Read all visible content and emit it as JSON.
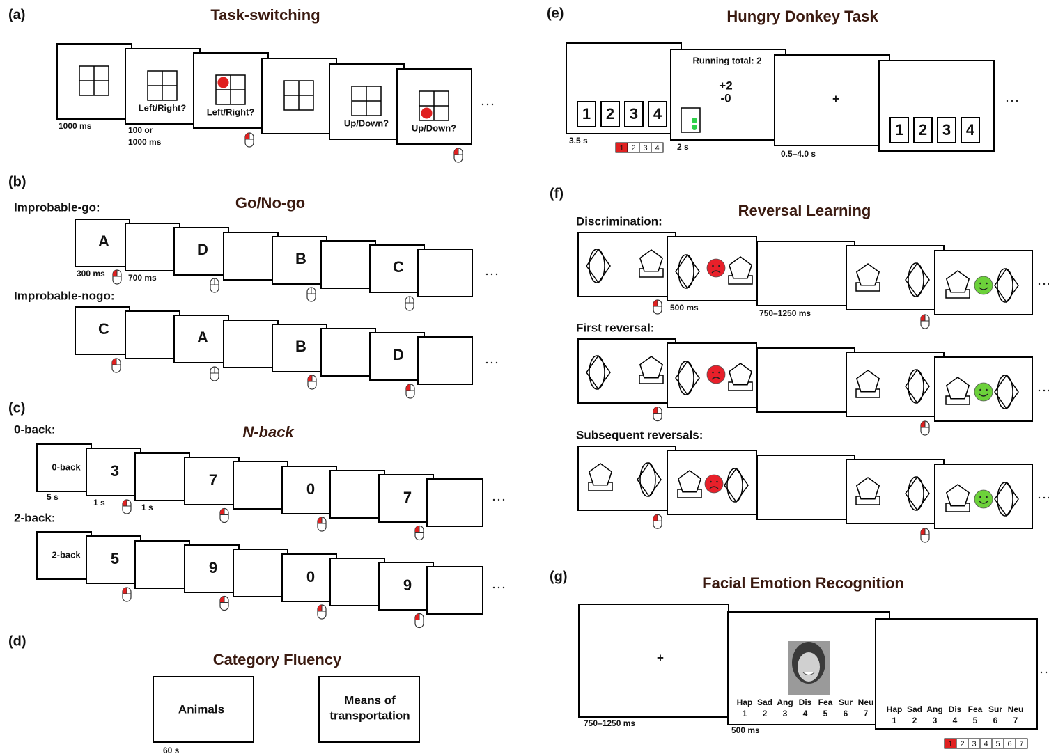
{
  "panels": {
    "a": {
      "label": "(a)",
      "title": "Task-switching",
      "screen_texts": [
        "Left/Right?",
        "Left/Right?",
        "Up/Down?",
        "Up/Down?"
      ],
      "timings": [
        "1000 ms",
        "100 or",
        "1000 ms"
      ]
    },
    "b": {
      "label": "(b)",
      "title": "Go/No-go",
      "row_labels": [
        "Improbable-go:",
        "Improbable-nogo:"
      ],
      "rows": [
        [
          "A",
          "D",
          "B",
          "C"
        ],
        [
          "C",
          "A",
          "B",
          "D"
        ]
      ],
      "timings": [
        "300 ms",
        "700 ms"
      ]
    },
    "c": {
      "label": "(c)",
      "title": "N-back",
      "row_labels": [
        "0-back:",
        "2-back:"
      ],
      "instructions": [
        "0-back",
        "2-back"
      ],
      "rows": [
        [
          "3",
          "7",
          "0",
          "7"
        ],
        [
          "5",
          "9",
          "0",
          "9"
        ]
      ],
      "timings": [
        "5 s",
        "1 s",
        "1 s"
      ]
    },
    "d": {
      "label": "(d)",
      "title": "Category Fluency",
      "categories": [
        "Animals",
        "Means of",
        "transportation"
      ],
      "timing": "60 s"
    },
    "e": {
      "label": "(e)",
      "title": "Hungry Donkey Task",
      "doors": [
        "1",
        "2",
        "3",
        "4"
      ],
      "running_total": "Running total: 2",
      "gain": "+2",
      "loss": "-0",
      "fixation": "+",
      "timings": [
        "3.5 s",
        "2 s",
        "0.5–4.0 s"
      ]
    },
    "f": {
      "label": "(f)",
      "title": "Reversal Learning",
      "row_labels": [
        "Discrimination:",
        "First reversal:",
        "Subsequent reversals:"
      ],
      "timings": [
        "500 ms",
        "750–1250 ms"
      ]
    },
    "g": {
      "label": "(g)",
      "title": "Facial Emotion Recognition",
      "fixation": "+",
      "emotions": [
        "Hap",
        "Sad",
        "Ang",
        "Dis",
        "Fea",
        "Sur",
        "Neu"
      ],
      "numbers": [
        "1",
        "2",
        "3",
        "4",
        "5",
        "6",
        "7"
      ],
      "timings": [
        "750–1250 ms",
        "500 ms"
      ]
    }
  }
}
